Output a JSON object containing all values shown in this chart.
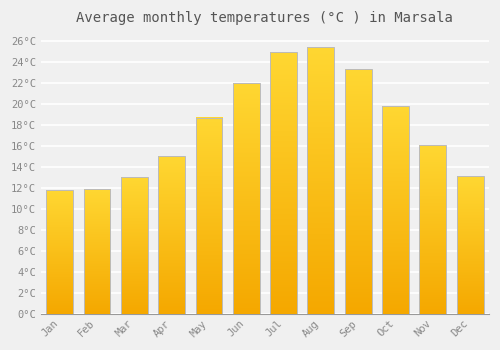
{
  "title": "Average monthly temperatures (°C ) in Marsala",
  "months": [
    "Jan",
    "Feb",
    "Mar",
    "Apr",
    "May",
    "Jun",
    "Jul",
    "Aug",
    "Sep",
    "Oct",
    "Nov",
    "Dec"
  ],
  "temperatures": [
    11.8,
    11.9,
    13.0,
    15.0,
    18.7,
    22.0,
    24.9,
    25.4,
    23.3,
    19.8,
    16.1,
    13.1
  ],
  "bar_color_center": "#FFD040",
  "bar_color_edge": "#F5A800",
  "bar_border_color": "#BBBBBB",
  "ylim": [
    0,
    27
  ],
  "yticks": [
    0,
    2,
    4,
    6,
    8,
    10,
    12,
    14,
    16,
    18,
    20,
    22,
    24,
    26
  ],
  "ytick_labels": [
    "0°C",
    "2°C",
    "4°C",
    "6°C",
    "8°C",
    "10°C",
    "12°C",
    "14°C",
    "16°C",
    "18°C",
    "20°C",
    "22°C",
    "24°C",
    "26°C"
  ],
  "background_color": "#f0f0f0",
  "plot_bg_color": "#f0f0f0",
  "grid_color": "#ffffff",
  "title_fontsize": 10,
  "tick_fontsize": 7.5,
  "tick_color": "#888888",
  "title_color": "#555555",
  "font_family": "monospace"
}
